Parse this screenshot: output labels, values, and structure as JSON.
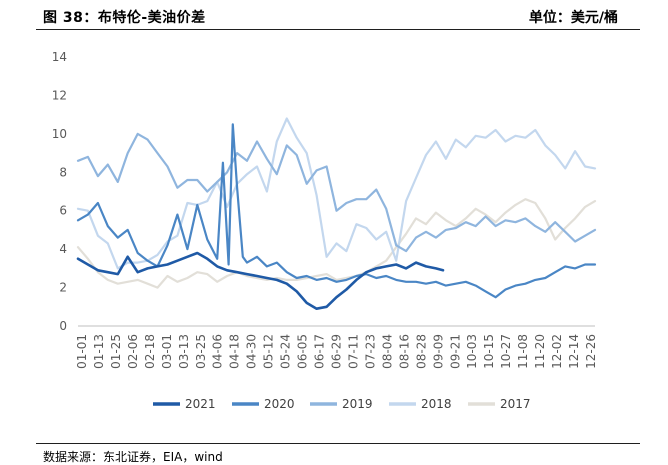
{
  "header": {
    "title": "图 38：布特伦-美油价差",
    "unit": "单位：美元/桶"
  },
  "footer": {
    "source": "数据来源：东北证券，EIA，wind"
  },
  "colors": {
    "axis": "#bfbfbf",
    "tick_text": "#595959"
  },
  "chart_data": {
    "type": "line",
    "title": "布特伦-美油价差",
    "ylabel": "美元/桶",
    "xlabel": "",
    "ylim": [
      0,
      14
    ],
    "yticks": [
      0,
      2,
      4,
      6,
      8,
      10,
      12,
      14
    ],
    "grid": false,
    "legend_position": "bottom",
    "x_unit": "day-of-year",
    "x_range": [
      1,
      365
    ],
    "categories": [
      "01-01",
      "01-13",
      "01-25",
      "02-06",
      "02-18",
      "03-01",
      "03-13",
      "03-25",
      "04-06",
      "04-18",
      "04-30",
      "05-12",
      "05-24",
      "06-05",
      "06-17",
      "06-29",
      "07-11",
      "07-23",
      "08-04",
      "08-16",
      "08-28",
      "09-09",
      "09-21",
      "10-03",
      "10-15",
      "10-27",
      "11-08",
      "11-20",
      "12-02",
      "12-14",
      "12-26"
    ],
    "series": [
      {
        "name": "2021",
        "color": "#1f5aa6",
        "x": [
          1,
          8,
          15,
          22,
          29,
          36,
          43,
          50,
          57,
          64,
          71,
          78,
          85,
          92,
          99,
          106,
          113,
          120,
          127,
          134,
          141,
          148,
          155,
          162,
          169,
          176,
          183,
          190,
          197,
          204,
          211,
          218,
          225,
          232,
          239,
          246,
          253,
          258
        ],
        "values": [
          3.5,
          3.2,
          2.9,
          2.8,
          2.7,
          3.6,
          2.8,
          3.0,
          3.1,
          3.2,
          3.4,
          3.6,
          3.8,
          3.5,
          3.1,
          2.9,
          2.8,
          2.7,
          2.6,
          2.5,
          2.4,
          2.2,
          1.8,
          1.2,
          0.9,
          1.0,
          1.5,
          1.9,
          2.4,
          2.8,
          3.0,
          3.1,
          3.2,
          3.0,
          3.3,
          3.1,
          3.0,
          2.9
        ]
      },
      {
        "name": "2020",
        "color": "#4a86c5",
        "x": [
          1,
          8,
          15,
          22,
          29,
          36,
          43,
          50,
          57,
          64,
          71,
          78,
          85,
          92,
          99,
          103,
          107,
          110,
          113,
          117,
          120,
          127,
          134,
          141,
          148,
          155,
          162,
          169,
          176,
          183,
          190,
          197,
          204,
          211,
          218,
          225,
          232,
          239,
          246,
          253,
          260,
          267,
          274,
          281,
          288,
          295,
          302,
          309,
          316,
          323,
          330,
          337,
          344,
          351,
          358,
          365
        ],
        "values": [
          5.5,
          5.8,
          6.4,
          5.2,
          4.6,
          5.0,
          3.8,
          3.4,
          3.1,
          4.2,
          5.8,
          4.0,
          6.3,
          4.5,
          3.5,
          8.5,
          3.2,
          10.5,
          7.2,
          3.6,
          3.3,
          3.6,
          3.1,
          3.3,
          2.8,
          2.5,
          2.6,
          2.4,
          2.5,
          2.3,
          2.4,
          2.6,
          2.7,
          2.5,
          2.6,
          2.4,
          2.3,
          2.3,
          2.2,
          2.3,
          2.1,
          2.2,
          2.3,
          2.1,
          1.8,
          1.5,
          1.9,
          2.1,
          2.2,
          2.4,
          2.5,
          2.8,
          3.1,
          3.0,
          3.2,
          3.2
        ]
      },
      {
        "name": "2019",
        "color": "#8fb5de",
        "x": [
          1,
          8,
          15,
          22,
          29,
          36,
          43,
          50,
          57,
          64,
          71,
          78,
          85,
          92,
          99,
          106,
          113,
          120,
          127,
          134,
          141,
          148,
          155,
          162,
          169,
          176,
          183,
          190,
          197,
          204,
          211,
          218,
          225,
          232,
          239,
          246,
          253,
          260,
          267,
          274,
          281,
          288,
          295,
          302,
          309,
          316,
          323,
          330,
          337,
          344,
          351,
          358,
          365
        ],
        "values": [
          8.6,
          8.8,
          7.8,
          8.4,
          7.5,
          9.0,
          10.0,
          9.7,
          9.0,
          8.3,
          7.2,
          7.6,
          7.6,
          7.0,
          7.5,
          8.0,
          9.0,
          8.6,
          9.6,
          8.7,
          7.9,
          9.4,
          8.9,
          7.4,
          8.1,
          8.3,
          6.0,
          6.4,
          6.6,
          6.6,
          7.1,
          6.1,
          4.2,
          3.9,
          4.6,
          4.9,
          4.6,
          5.0,
          5.1,
          5.4,
          5.2,
          5.7,
          5.2,
          5.5,
          5.4,
          5.6,
          5.2,
          4.9,
          5.4,
          4.9,
          4.4,
          4.7,
          5.0
        ]
      },
      {
        "name": "2018",
        "color": "#c3d7ee",
        "x": [
          1,
          8,
          15,
          22,
          29,
          36,
          43,
          50,
          57,
          64,
          71,
          78,
          85,
          92,
          99,
          106,
          113,
          120,
          127,
          134,
          141,
          148,
          155,
          162,
          169,
          176,
          183,
          190,
          197,
          204,
          211,
          218,
          225,
          232,
          239,
          246,
          253,
          260,
          267,
          274,
          281,
          288,
          295,
          302,
          309,
          316,
          323,
          330,
          337,
          344,
          351,
          358,
          365
        ],
        "values": [
          6.1,
          6.0,
          4.7,
          4.3,
          3.0,
          3.3,
          3.3,
          3.4,
          3.7,
          4.4,
          4.7,
          6.4,
          6.3,
          6.5,
          7.5,
          6.2,
          7.4,
          7.9,
          8.3,
          7.0,
          9.6,
          10.8,
          9.8,
          9.0,
          6.8,
          3.6,
          4.3,
          3.9,
          5.3,
          5.1,
          4.5,
          4.9,
          3.4,
          6.5,
          7.7,
          8.9,
          9.6,
          8.7,
          9.7,
          9.3,
          9.9,
          9.8,
          10.2,
          9.6,
          9.9,
          9.8,
          10.2,
          9.4,
          8.9,
          8.2,
          9.1,
          8.3,
          8.2
        ]
      },
      {
        "name": "2017",
        "color": "#e2dfd8",
        "x": [
          1,
          8,
          15,
          22,
          29,
          36,
          43,
          50,
          57,
          64,
          71,
          78,
          85,
          92,
          99,
          106,
          113,
          120,
          127,
          134,
          141,
          148,
          155,
          162,
          169,
          176,
          183,
          190,
          197,
          204,
          211,
          218,
          225,
          232,
          239,
          246,
          253,
          260,
          267,
          274,
          281,
          288,
          295,
          302,
          309,
          316,
          323,
          330,
          337,
          344,
          351,
          358,
          365
        ],
        "values": [
          4.1,
          3.5,
          2.8,
          2.4,
          2.2,
          2.3,
          2.4,
          2.2,
          2.0,
          2.6,
          2.3,
          2.5,
          2.8,
          2.7,
          2.3,
          2.6,
          2.8,
          2.6,
          2.5,
          2.4,
          2.5,
          2.4,
          2.4,
          2.5,
          2.6,
          2.7,
          2.4,
          2.5,
          2.6,
          2.8,
          3.1,
          3.4,
          4.1,
          4.8,
          5.6,
          5.3,
          5.9,
          5.5,
          5.2,
          5.6,
          6.1,
          5.8,
          5.4,
          5.9,
          6.3,
          6.6,
          6.4,
          5.6,
          4.5,
          5.1,
          5.6,
          6.2,
          6.5
        ]
      }
    ]
  }
}
